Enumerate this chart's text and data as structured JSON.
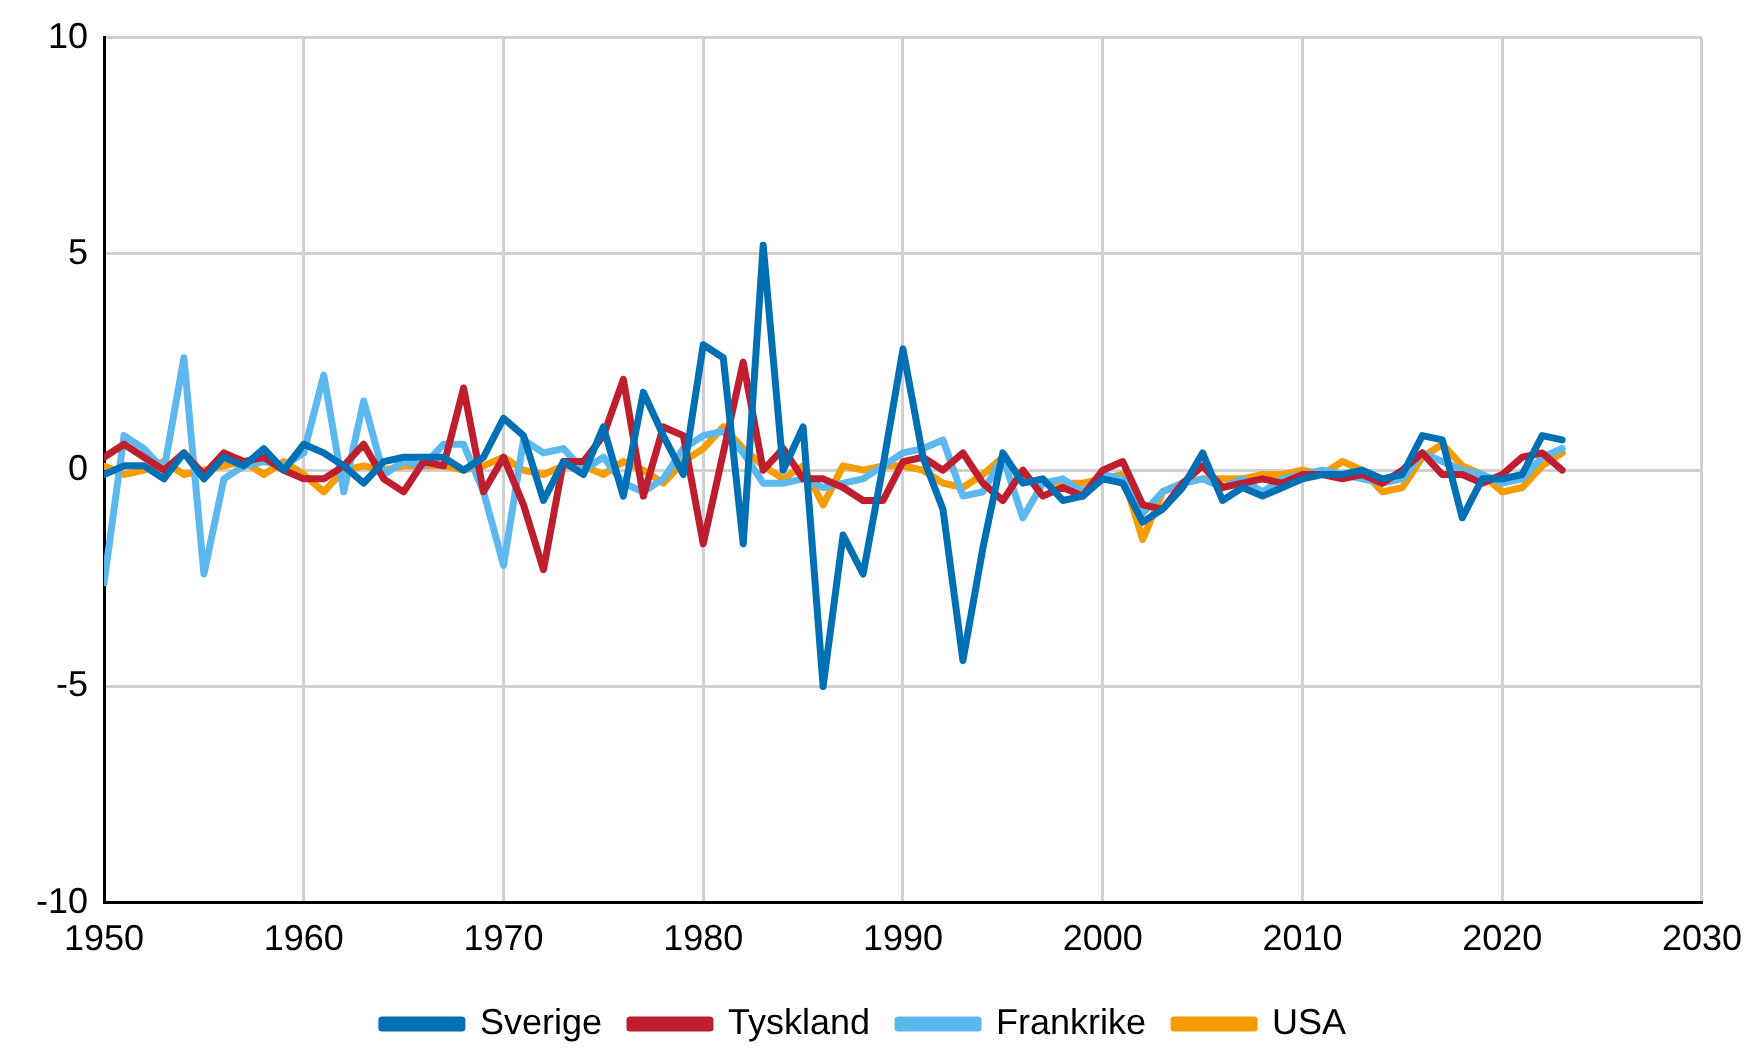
{
  "chart_data": {
    "type": "line",
    "x": [
      1950,
      1951,
      1952,
      1953,
      1954,
      1955,
      1956,
      1957,
      1958,
      1959,
      1960,
      1961,
      1962,
      1963,
      1964,
      1965,
      1966,
      1967,
      1968,
      1969,
      1970,
      1971,
      1972,
      1973,
      1974,
      1975,
      1976,
      1977,
      1978,
      1979,
      1980,
      1981,
      1982,
      1983,
      1984,
      1985,
      1986,
      1987,
      1988,
      1989,
      1990,
      1991,
      1992,
      1993,
      1994,
      1995,
      1996,
      1997,
      1998,
      1999,
      2000,
      2001,
      2002,
      2003,
      2004,
      2005,
      2006,
      2007,
      2008,
      2009,
      2010,
      2011,
      2012,
      2013,
      2014,
      2015,
      2016,
      2017,
      2018,
      2019,
      2020,
      2021,
      2022,
      2023
    ],
    "series": [
      {
        "name": "Sverige",
        "color": "#0070b4",
        "values": [
          -0.1,
          0.1,
          0.1,
          -0.2,
          0.4,
          -0.2,
          0.3,
          0.1,
          0.5,
          0.0,
          0.6,
          0.4,
          0.1,
          -0.3,
          0.2,
          0.3,
          0.3,
          0.3,
          0.0,
          0.3,
          1.2,
          0.8,
          -0.7,
          0.2,
          -0.1,
          1.0,
          -0.6,
          1.8,
          0.8,
          -0.1,
          2.9,
          2.6,
          -1.7,
          5.2,
          0.0,
          1.0,
          -5.0,
          -1.5,
          -2.4,
          0.1,
          2.8,
          0.3,
          -0.9,
          -4.4,
          -1.8,
          0.4,
          -0.3,
          -0.2,
          -0.7,
          -0.6,
          -0.2,
          -0.3,
          -1.2,
          -0.9,
          -0.4,
          0.4,
          -0.7,
          -0.4,
          -0.6,
          -0.4,
          -0.2,
          -0.1,
          -0.1,
          0.0,
          -0.2,
          -0.1,
          0.8,
          0.7,
          -1.1,
          -0.2,
          -0.2,
          -0.1,
          0.8,
          0.7
        ]
      },
      {
        "name": "Tyskland",
        "color": "#be1e2d",
        "values": [
          0.3,
          0.6,
          0.3,
          0.0,
          0.4,
          -0.1,
          0.4,
          0.2,
          0.3,
          0.0,
          -0.2,
          -0.2,
          0.1,
          0.6,
          -0.2,
          -0.5,
          0.2,
          0.1,
          1.9,
          -0.5,
          0.3,
          -0.8,
          -2.3,
          0.2,
          0.2,
          0.8,
          2.1,
          -0.6,
          1.0,
          0.8,
          -1.7,
          0.4,
          2.5,
          0.0,
          0.5,
          -0.2,
          -0.2,
          -0.4,
          -0.7,
          -0.7,
          0.2,
          0.3,
          0.0,
          0.4,
          -0.3,
          -0.7,
          0.0,
          -0.6,
          -0.4,
          -0.6,
          0.0,
          0.2,
          -0.8,
          -0.9,
          -0.3,
          0.1,
          -0.4,
          -0.3,
          -0.2,
          -0.3,
          -0.1,
          -0.1,
          -0.2,
          -0.1,
          -0.3,
          0.0,
          0.4,
          -0.1,
          -0.1,
          -0.3,
          -0.1,
          0.3,
          0.4,
          0.0
        ]
      },
      {
        "name": "Frankrike",
        "color": "#5db8f0",
        "values": [
          -2.6,
          0.8,
          0.5,
          0.0,
          2.6,
          -2.4,
          -0.2,
          0.1,
          0.2,
          0.1,
          0.4,
          2.2,
          -0.5,
          1.6,
          -0.1,
          0.2,
          0.1,
          0.6,
          0.6,
          -0.5,
          -2.2,
          0.7,
          0.4,
          0.5,
          0.0,
          0.3,
          -0.3,
          -0.5,
          -0.2,
          0.5,
          0.8,
          0.9,
          0.4,
          -0.3,
          -0.3,
          -0.2,
          -0.4,
          -0.3,
          -0.2,
          0.1,
          0.4,
          0.5,
          0.7,
          -0.6,
          -0.5,
          0.3,
          -1.1,
          -0.3,
          -0.2,
          -0.5,
          -0.1,
          -0.2,
          -1.0,
          -0.5,
          -0.3,
          -0.2,
          -0.4,
          -0.2,
          -0.5,
          -0.2,
          -0.1,
          0.0,
          -0.1,
          -0.2,
          -0.3,
          -0.2,
          0.4,
          0.2,
          0.0,
          -0.1,
          -0.3,
          -0.2,
          0.3,
          0.5
        ]
      },
      {
        "name": "USA",
        "color": "#f59c00",
        "values": [
          0.1,
          -0.1,
          0.0,
          0.2,
          -0.1,
          0.0,
          0.1,
          0.2,
          -0.1,
          0.2,
          -0.1,
          -0.5,
          0.0,
          0.1,
          0.0,
          0.1,
          0.1,
          0.1,
          0.0,
          0.1,
          0.3,
          0.0,
          -0.1,
          0.1,
          0.1,
          -0.1,
          0.2,
          0.0,
          -0.3,
          0.2,
          0.5,
          1.0,
          0.5,
          0.1,
          -0.2,
          0.1,
          -0.8,
          0.1,
          0.0,
          0.1,
          0.1,
          0.0,
          -0.3,
          -0.4,
          -0.1,
          0.3,
          -0.2,
          -0.3,
          -0.3,
          -0.3,
          -0.2,
          -0.1,
          -1.6,
          -0.5,
          -0.3,
          -0.2,
          -0.2,
          -0.2,
          -0.1,
          -0.1,
          0.0,
          -0.1,
          0.2,
          0.0,
          -0.5,
          -0.4,
          0.3,
          0.6,
          0.1,
          -0.1,
          -0.5,
          -0.4,
          0.1,
          0.4
        ]
      }
    ],
    "xlim": [
      1950,
      2030
    ],
    "xticks": [
      1950,
      1960,
      1970,
      1980,
      1990,
      2000,
      2010,
      2020,
      2030
    ],
    "ylim": [
      -10,
      10
    ],
    "yticks": [
      -10,
      -5,
      0,
      5,
      10
    ],
    "grid": true,
    "legend": "bottom",
    "marker": "none",
    "line_style": "solid"
  }
}
